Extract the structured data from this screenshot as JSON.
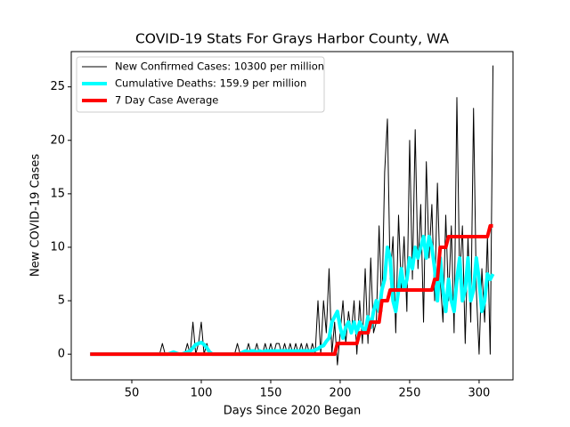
{
  "chart_data": {
    "type": "line",
    "title": "COVID-19 Stats For Grays Harbor County, WA",
    "x_label": "Days Since 2020 Began",
    "y_label": "New COVID-19 Cases",
    "xlim": [
      6.4,
      324.4
    ],
    "ylim": [
      -2.4,
      28.3
    ],
    "xticks": [
      50,
      100,
      150,
      200,
      250,
      300
    ],
    "yticks": [
      0,
      5,
      10,
      15,
      20,
      25
    ],
    "grid": false,
    "legend": "upper left",
    "x": [
      20,
      22,
      24,
      26,
      28,
      30,
      32,
      34,
      36,
      38,
      40,
      42,
      44,
      46,
      48,
      50,
      52,
      54,
      56,
      58,
      60,
      62,
      64,
      66,
      68,
      70,
      72,
      74,
      76,
      78,
      80,
      82,
      84,
      86,
      88,
      90,
      92,
      94,
      96,
      98,
      100,
      102,
      104,
      106,
      108,
      110,
      112,
      114,
      116,
      118,
      120,
      122,
      124,
      126,
      128,
      130,
      132,
      134,
      136,
      138,
      140,
      142,
      144,
      146,
      148,
      150,
      152,
      154,
      156,
      158,
      160,
      162,
      164,
      166,
      168,
      170,
      172,
      174,
      176,
      178,
      180,
      182,
      184,
      186,
      188,
      190,
      192,
      194,
      196,
      198,
      200,
      202,
      204,
      206,
      208,
      210,
      212,
      214,
      216,
      218,
      220,
      222,
      224,
      226,
      228,
      230,
      232,
      234,
      236,
      238,
      240,
      242,
      244,
      246,
      248,
      250,
      252,
      254,
      256,
      258,
      260,
      262,
      264,
      266,
      268,
      270,
      272,
      274,
      276,
      278,
      280,
      282,
      284,
      286,
      288,
      290,
      292,
      294,
      296,
      298,
      300,
      302,
      304,
      306,
      308,
      310
    ],
    "series": [
      {
        "name": "New Confirmed Cases: 10300 per million",
        "color": "#000000",
        "width": 1,
        "values": [
          0,
          0,
          0,
          0,
          0,
          0,
          0,
          0,
          0,
          0,
          0,
          0,
          0,
          0,
          0,
          0,
          0,
          0,
          0,
          0,
          0,
          0,
          0,
          0,
          0,
          0,
          1,
          0,
          0,
          0,
          0,
          0,
          0,
          0,
          0,
          1,
          0,
          3,
          0,
          1,
          3,
          0,
          1,
          0,
          0,
          0,
          0,
          0,
          0,
          0,
          0,
          0,
          0,
          1,
          0,
          0,
          0,
          1,
          0,
          0,
          1,
          0,
          0,
          1,
          0,
          1,
          0,
          1,
          1,
          0,
          1,
          0,
          1,
          0,
          1,
          0,
          1,
          0,
          1,
          0,
          1,
          0,
          5,
          0,
          5,
          2,
          8,
          0,
          3,
          -1,
          2,
          5,
          1,
          4,
          2,
          5,
          0,
          5,
          1,
          8,
          1,
          9,
          2,
          3,
          12,
          4,
          17,
          22,
          7,
          11,
          2,
          13,
          6,
          11,
          4,
          20,
          7,
          21,
          8,
          14,
          3,
          18,
          9,
          14,
          5,
          16,
          7,
          3,
          13,
          5,
          12,
          2,
          24,
          7,
          12,
          1,
          11,
          3,
          23,
          6,
          0,
          8,
          3,
          11,
          0,
          27
        ]
      },
      {
        "name": "Cumulative Deaths: 159.9 per million",
        "color": "#00ffff",
        "width": 4,
        "values": [
          0,
          0,
          0,
          0,
          0,
          0,
          0,
          0,
          0,
          0,
          0,
          0,
          0,
          0,
          0,
          0,
          0,
          0,
          0,
          0,
          0,
          0,
          0,
          0,
          0,
          0,
          0,
          0,
          0,
          0.1,
          0.2,
          0.1,
          0,
          0,
          0.1,
          0.2,
          0.3,
          0.6,
          0.9,
          1,
          1.1,
          0.9,
          0.6,
          0.2,
          0,
          0,
          0,
          0,
          0,
          0,
          0,
          0,
          0,
          0,
          0,
          0.2,
          0.3,
          0.2,
          0.3,
          0.3,
          0.2,
          0.3,
          0.2,
          0.3,
          0.3,
          0.3,
          0.3,
          0.3,
          0.3,
          0.3,
          0.3,
          0.3,
          0.3,
          0.3,
          0.3,
          0.3,
          0.3,
          0.3,
          0.3,
          0.3,
          0.3,
          0.4,
          0.5,
          0.7,
          0.8,
          1.2,
          1.5,
          3,
          3.5,
          4,
          2.5,
          1.5,
          2.5,
          3,
          2,
          3,
          2,
          3,
          2.5,
          2,
          3.5,
          2.5,
          4,
          5,
          4,
          6,
          7,
          10,
          9,
          5,
          4,
          6,
          8,
          6,
          7,
          9,
          8,
          10,
          9,
          10,
          11,
          9,
          11,
          10,
          8,
          5,
          9,
          6,
          4,
          7,
          5,
          4,
          7,
          9,
          5,
          6,
          9,
          5,
          6,
          9,
          7,
          4,
          5,
          7.5,
          7,
          7.5
        ]
      },
      {
        "name": "7 Day Case Average",
        "color": "#ff0000",
        "width": 4,
        "values": [
          0,
          0,
          0,
          0,
          0,
          0,
          0,
          0,
          0,
          0,
          0,
          0,
          0,
          0,
          0,
          0,
          0,
          0,
          0,
          0,
          0,
          0,
          0,
          0,
          0,
          0,
          0,
          0,
          0,
          0,
          0,
          0,
          0,
          0,
          0,
          0,
          0,
          0,
          0,
          0,
          0,
          0,
          0,
          0,
          0,
          0,
          0,
          0,
          0,
          0,
          0,
          0,
          0,
          0,
          0,
          0,
          0,
          0,
          0,
          0,
          0,
          0,
          0,
          0,
          0,
          0,
          0,
          0,
          0,
          0,
          0,
          0,
          0,
          0,
          0,
          0,
          0,
          0,
          0,
          0,
          0,
          0,
          0,
          0,
          0,
          0,
          0,
          0,
          0,
          1,
          1,
          1,
          1,
          1,
          1,
          1,
          1,
          2,
          2,
          2,
          2,
          3,
          3,
          3,
          3,
          5,
          5,
          5,
          6,
          6,
          6,
          6,
          6,
          6,
          6,
          6,
          6,
          6,
          6,
          6,
          6,
          6,
          6,
          6,
          7,
          7,
          10,
          10,
          10,
          11,
          11,
          11,
          11,
          11,
          11,
          11,
          11,
          11,
          11,
          11,
          11,
          11,
          11,
          11,
          12,
          12
        ]
      }
    ]
  }
}
